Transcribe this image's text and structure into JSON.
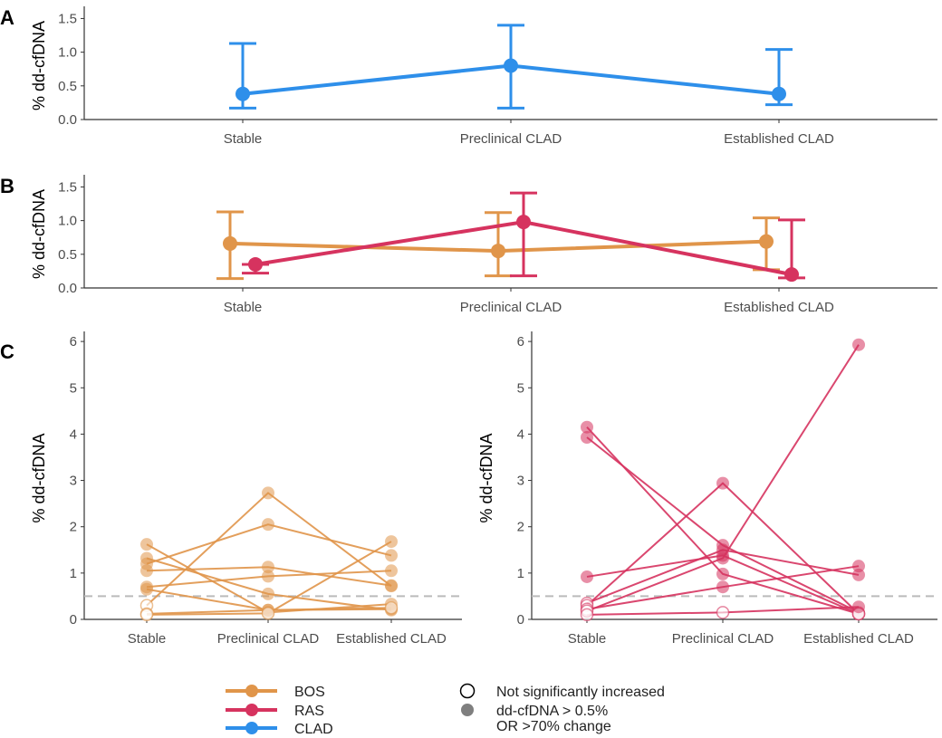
{
  "colors": {
    "BOS": "#E0954A",
    "RAS": "#D6335F",
    "CLAD": "#2E8FEA",
    "axis": "#333333",
    "tick_text": "#4D4D4D",
    "ref_line": "#BBBBBB"
  },
  "chart_data": [
    {
      "panel": "A",
      "type": "line",
      "ylabel": "% dd-cfDNA",
      "categories": [
        "Stable",
        "Preclinical CLAD",
        "Established CLAD"
      ],
      "ylim": [
        0,
        1.6
      ],
      "yticks": [
        "0.0",
        "0.5",
        "1.0",
        "1.5"
      ],
      "series": [
        {
          "name": "CLAD",
          "values": [
            0.38,
            0.8,
            0.38
          ],
          "lower": [
            0.17,
            0.17,
            0.22
          ],
          "upper": [
            1.13,
            1.4,
            1.04
          ]
        }
      ]
    },
    {
      "panel": "B",
      "type": "line",
      "ylabel": "% dd-cfDNA",
      "categories": [
        "Stable",
        "Preclinical CLAD",
        "Established CLAD"
      ],
      "ylim": [
        0,
        1.6
      ],
      "yticks": [
        "0.0",
        "0.5",
        "1.0",
        "1.5"
      ],
      "series": [
        {
          "name": "BOS",
          "values": [
            0.66,
            0.55,
            0.69
          ],
          "lower": [
            0.14,
            0.18,
            0.27
          ],
          "upper": [
            1.13,
            1.12,
            1.04
          ]
        },
        {
          "name": "RAS",
          "values": [
            0.35,
            0.98,
            0.2
          ],
          "lower": [
            0.22,
            0.18,
            0.15
          ],
          "upper": [
            0.35,
            1.41,
            1.01
          ]
        }
      ]
    },
    {
      "panel": "C",
      "type": "line",
      "subtype": "paired-spaghetti",
      "group": "BOS",
      "ylabel": "% dd-cfDNA",
      "categories": [
        "Stable",
        "Preclinical CLAD",
        "Established CLAD"
      ],
      "ylim": [
        0,
        6.1
      ],
      "yticks": [
        "0",
        "1",
        "2",
        "3",
        "4",
        "5",
        "6"
      ],
      "reference_line": 0.5,
      "lines": [
        [
          1.62,
          0.15,
          0.33
        ],
        [
          1.32,
          0.55,
          0.2
        ],
        [
          1.2,
          2.05,
          1.38
        ],
        [
          1.05,
          1.13,
          0.73
        ],
        [
          0.7,
          0.93,
          1.05
        ],
        [
          0.65,
          0.2,
          0.22
        ],
        [
          0.3,
          2.73,
          0.72
        ],
        [
          0.12,
          0.2,
          0.25
        ],
        [
          0.1,
          0.13,
          1.68
        ]
      ],
      "open_points": [
        [
          0,
          0.3
        ],
        [
          0,
          0.12
        ],
        [
          0,
          0.1
        ],
        [
          1,
          0.13
        ],
        [
          2,
          0.25
        ]
      ]
    },
    {
      "panel": "C",
      "type": "line",
      "subtype": "paired-spaghetti",
      "group": "RAS",
      "ylabel": "% dd-cfDNA",
      "categories": [
        "Stable",
        "Preclinical CLAD",
        "Established CLAD"
      ],
      "ylim": [
        0,
        6.1
      ],
      "yticks": [
        "0",
        "1",
        "2",
        "3",
        "4",
        "5",
        "6"
      ],
      "reference_line": 0.5,
      "lines": [
        [
          4.15,
          0.98,
          0.12
        ],
        [
          3.93,
          1.6,
          0.15
        ],
        [
          0.92,
          1.38,
          0.12
        ],
        [
          0.35,
          1.5,
          0.96
        ],
        [
          0.3,
          2.94,
          0.12
        ],
        [
          0.22,
          0.7,
          1.15
        ],
        [
          0.18,
          1.32,
          5.93
        ],
        [
          0.1,
          0.15,
          0.27
        ]
      ],
      "open_points": [
        [
          0,
          0.35
        ],
        [
          0,
          0.3
        ],
        [
          0,
          0.22
        ],
        [
          0,
          0.18
        ],
        [
          0,
          0.1
        ],
        [
          1,
          0.15
        ],
        [
          2,
          0.12
        ]
      ]
    }
  ],
  "panel_letters": [
    "A",
    "B",
    "C"
  ],
  "legend": {
    "groups": [
      {
        "label": "BOS",
        "color_key": "BOS"
      },
      {
        "label": "RAS",
        "color_key": "RAS"
      },
      {
        "label": "CLAD",
        "color_key": "CLAD"
      }
    ],
    "markers": [
      {
        "label": "Not significantly increased",
        "style": "open"
      },
      {
        "label": "dd-cfDNA > 0.5%",
        "style": "filled"
      },
      {
        "label": "OR >70% change",
        "style": "none"
      }
    ]
  }
}
